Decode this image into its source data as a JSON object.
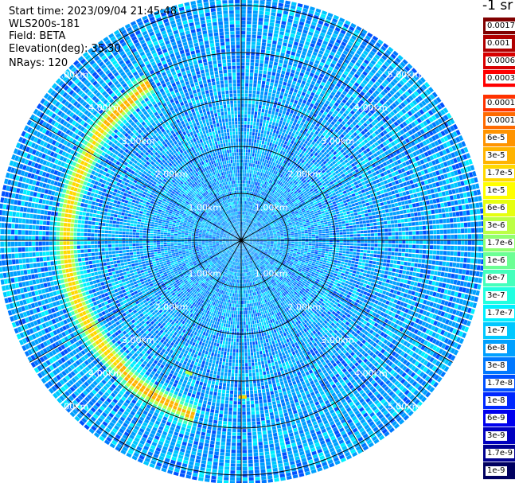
{
  "header": {
    "start_time_label": "Start time:",
    "start_time_value": "2023/09/04 21:45:48",
    "station": "WLS200s-181",
    "field_label": "Field:",
    "field_value": "BETA",
    "elevation_label": "Elevation(deg):",
    "elevation_value": "35.30",
    "nrays_label": "NRays:",
    "nrays_value": "120"
  },
  "colorbar": {
    "unit_title": "-1 sr",
    "levels": [
      {
        "label": "0.0017",
        "color": "#800000"
      },
      {
        "label": "0.001",
        "color": "#b00000"
      },
      {
        "label": "0.0006",
        "color": "#d80000"
      },
      {
        "label": "0.0003",
        "color": "#ff0000"
      },
      {
        "gap": true
      },
      {
        "label": "0.00017",
        "color": "#ff3200"
      },
      {
        "label": "0.0001",
        "color": "#ff6a00"
      },
      {
        "label": "6e-5",
        "color": "#ff9400"
      },
      {
        "label": "3e-5",
        "color": "#ffb400"
      },
      {
        "label": "1.7e-5",
        "color": "#ffd800"
      },
      {
        "label": "1e-5",
        "color": "#ffff00"
      },
      {
        "label": "6e-6",
        "color": "#e6ff10"
      },
      {
        "label": "3e-6",
        "color": "#bcff44"
      },
      {
        "label": "1.7e-6",
        "color": "#90ff70"
      },
      {
        "label": "1e-6",
        "color": "#6cff94"
      },
      {
        "label": "6e-7",
        "color": "#44ffbc"
      },
      {
        "label": "3e-7",
        "color": "#20ffe0"
      },
      {
        "label": "1.7e-7",
        "color": "#00f0ff"
      },
      {
        "label": "1e-7",
        "color": "#00c8ff"
      },
      {
        "label": "6e-8",
        "color": "#00a0ff"
      },
      {
        "label": "3e-8",
        "color": "#0078ff"
      },
      {
        "label": "1.7e-8",
        "color": "#0050ff"
      },
      {
        "label": "1e-8",
        "color": "#0028ff"
      },
      {
        "label": "6e-9",
        "color": "#0000ee"
      },
      {
        "label": "3e-9",
        "color": "#0000c0"
      },
      {
        "label": "1.7e-9",
        "color": "#000090"
      },
      {
        "label": "1e-9",
        "color": "#000060"
      }
    ]
  },
  "chart_data": {
    "type": "heatmap",
    "projection": "polar",
    "field": "BETA",
    "range_rings_km": [
      1,
      2,
      3,
      4,
      5
    ],
    "range_ring_labels": [
      "1.00km",
      "2.00km",
      "3.00km",
      "4.00km",
      "5.00km"
    ],
    "max_range_km": 5.2,
    "n_rays": 120,
    "radial_spokes_deg": [
      0,
      30,
      60,
      90,
      120,
      150,
      180,
      210,
      240,
      270,
      300,
      330
    ],
    "background_level": "1e-8 to 6e-8",
    "features": [
      {
        "description": "enhanced backscatter arc",
        "azimuth_deg": [
          195,
          330
        ],
        "range_km": [
          3.6,
          4.3
        ],
        "peak_level": "6e-5"
      }
    ]
  }
}
